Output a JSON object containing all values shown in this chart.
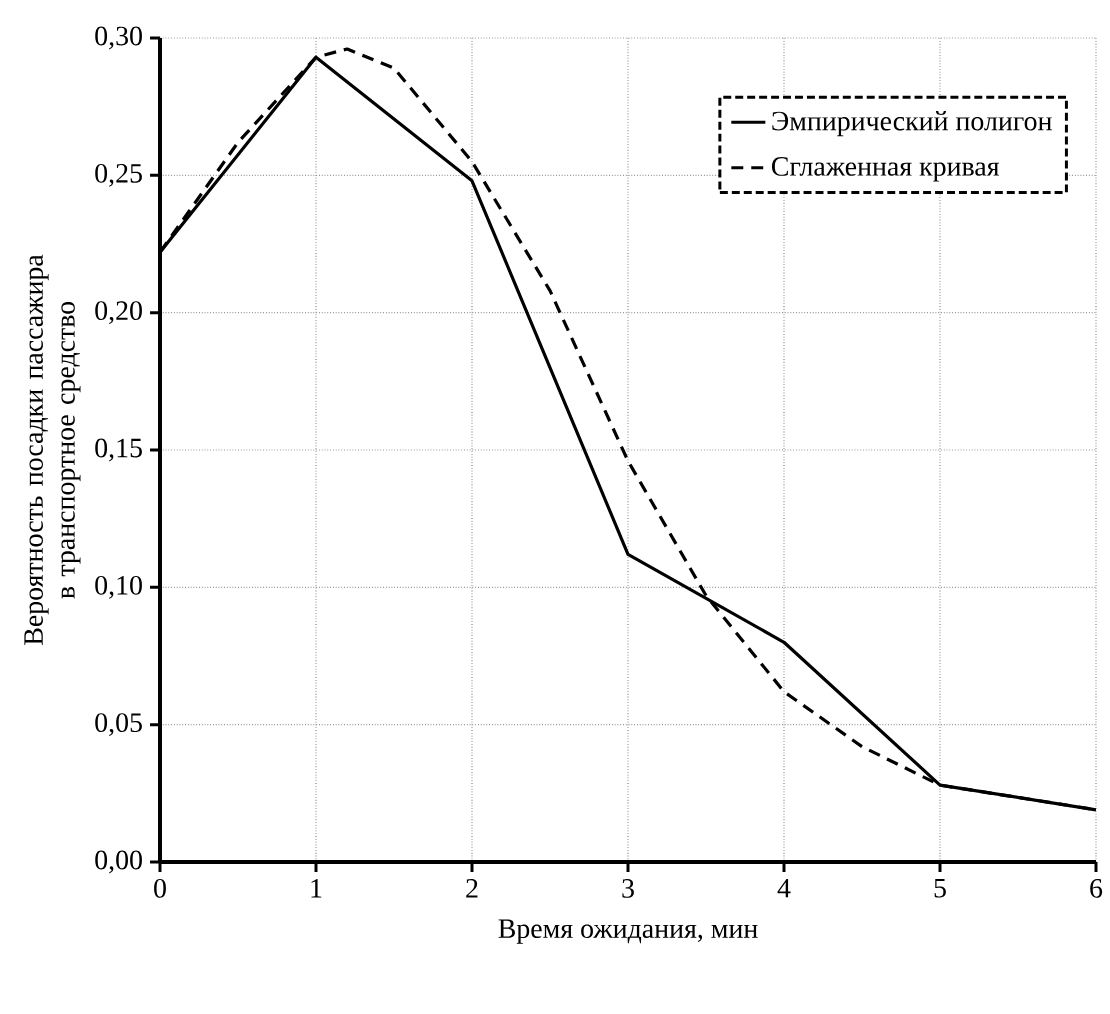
{
  "chart_data": {
    "type": "line",
    "xlabel": "Время ожидания, мин",
    "ylabel": "Вероятность посадки пассажира в транспортное средство",
    "xlim": [
      0,
      6
    ],
    "xticks": [
      0,
      1,
      2,
      3,
      4,
      5,
      6
    ],
    "ylim": [
      0,
      0.3
    ],
    "yticks": [
      {
        "value": 0,
        "label": "0,00"
      },
      {
        "value": 0.05,
        "label": "0,05"
      },
      {
        "value": 0.1,
        "label": "0,10"
      },
      {
        "value": 0.15,
        "label": "0,15"
      },
      {
        "value": 0.2,
        "label": "0,20"
      },
      {
        "value": 0.25,
        "label": "0,25"
      },
      {
        "value": 0.3,
        "label": "0,30"
      }
    ],
    "grid": true,
    "legend": "top right",
    "marker": "none",
    "series": [
      {
        "name": "Эмпирический полигон",
        "color": "#000000",
        "line_style": "solid",
        "x": [
          0,
          1,
          2,
          3,
          4,
          5,
          6
        ],
        "values": [
          0.222,
          0.293,
          0.248,
          0.112,
          0.08,
          0.028,
          0.019
        ]
      },
      {
        "name": "Сглаженная кривая",
        "color": "#000000",
        "line_style": "dashed",
        "x": [
          0,
          0.5,
          1,
          1.2,
          1.5,
          2,
          2.5,
          3,
          3.5,
          4,
          4.5,
          5,
          6
        ],
        "values": [
          0.222,
          0.262,
          0.293,
          0.296,
          0.289,
          0.255,
          0.208,
          0.146,
          0.097,
          0.062,
          0.042,
          0.028,
          0.019
        ]
      }
    ]
  }
}
